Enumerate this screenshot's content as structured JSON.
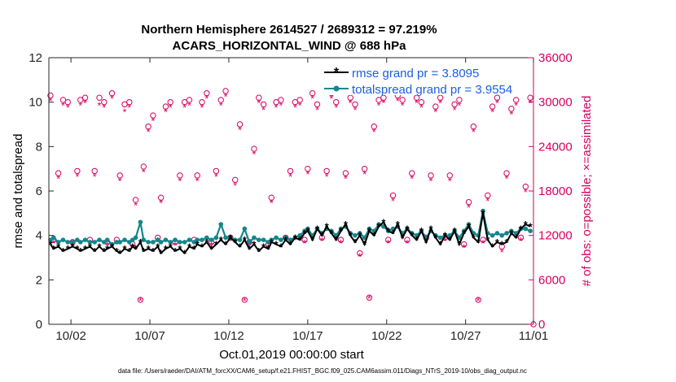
{
  "chart_data": {
    "type": "line",
    "title": [
      "Northern Hemisphere 2614527 / 2689312 = 97.219%",
      "ACARS_HORIZONTAL_WIND @ 688 hPa"
    ],
    "xlabel": "Oct.01,2019 00:00:00 start",
    "ylabel": "rmse and totalspread",
    "y2label": "# of obs: o=possible; ×=assimilated",
    "footnote": "data file: /Users/raeder/DAI/ATM_forcXX/CAM6_setup/f.e21.FHIST_BGC.f09_025.CAM6assim.011/Diags_NTrS_2019-10/obs_diag_output.nc",
    "xlim": [
      0.5,
      31.2
    ],
    "ylim": [
      0,
      12
    ],
    "y2lim": [
      0,
      36000
    ],
    "xticks": [
      1.9,
      6.9,
      11.9,
      16.9,
      21.9,
      26.9,
      31.9
    ],
    "xtick_labels": [
      "10/02",
      "10/07",
      "10/12",
      "10/17",
      "10/22",
      "10/27",
      "11/01"
    ],
    "yticks": [
      0,
      2,
      4,
      6,
      8,
      10,
      12
    ],
    "ytick_labels": [
      "0",
      "2",
      "4",
      "6",
      "8",
      "10",
      "12"
    ],
    "y2ticks": [
      0,
      6000,
      12000,
      18000,
      24000,
      30000,
      36000
    ],
    "y2tick_labels": [
      "0",
      "6000",
      "12000",
      "18000",
      "24000",
      "30000",
      "36000"
    ],
    "legend": [
      "rmse grand pr = 3.8095",
      "totalspread grand pr = 3.9554"
    ],
    "colors": {
      "rmse": "#000000",
      "spread": "#14868c",
      "obs": "#d6005f",
      "title": "#000000",
      "legend_text": "#1a5fe0"
    },
    "series": [
      {
        "name": "rmse",
        "x": [
          0.6,
          0.8,
          1.1,
          1.4,
          1.7,
          2.0,
          2.3,
          2.5,
          2.8,
          3.1,
          3.4,
          3.7,
          4.0,
          4.2,
          4.5,
          4.8,
          5.0,
          5.3,
          5.6,
          5.8,
          6.0,
          6.3,
          6.5,
          6.8,
          7.1,
          7.4,
          7.6,
          7.9,
          8.2,
          8.5,
          8.8,
          9.1,
          9.4,
          9.7,
          9.9,
          10.2,
          10.5,
          10.8,
          11.1,
          11.4,
          11.7,
          12.0,
          12.3,
          12.6,
          12.9,
          13.2,
          13.5,
          13.8,
          14.1,
          14.4,
          14.6,
          14.9,
          15.2,
          15.5,
          15.8,
          16.1,
          16.4,
          16.7,
          16.9,
          17.2,
          17.5,
          17.8,
          18.1,
          18.4,
          18.7,
          19.0,
          19.3,
          19.6,
          19.9,
          20.2,
          20.5,
          20.8,
          21.1,
          21.4,
          21.7,
          22.0,
          22.3,
          22.6,
          22.9,
          23.2,
          23.5,
          23.8,
          24.1,
          24.4,
          24.7,
          25.0,
          25.3,
          25.6,
          25.9,
          26.2,
          26.5,
          26.8,
          27.1,
          27.4,
          27.7,
          28.0,
          28.3,
          28.6,
          28.9,
          29.2,
          29.5,
          29.8,
          30.1,
          30.4,
          30.7,
          31.0
        ],
        "values": [
          3.6,
          3.4,
          3.5,
          3.3,
          3.4,
          3.5,
          3.4,
          3.3,
          3.4,
          3.5,
          3.3,
          3.5,
          3.3,
          3.4,
          3.5,
          3.3,
          3.2,
          3.4,
          3.3,
          3.5,
          3.4,
          3.7,
          3.3,
          3.4,
          3.3,
          3.5,
          3.2,
          3.4,
          3.5,
          3.3,
          3.4,
          3.2,
          3.5,
          3.4,
          3.6,
          3.5,
          3.7,
          3.4,
          3.6,
          3.8,
          3.6,
          3.9,
          3.7,
          3.5,
          3.8,
          3.4,
          3.6,
          3.3,
          3.5,
          3.4,
          3.7,
          3.6,
          3.5,
          3.8,
          3.6,
          3.9,
          3.8,
          4.1,
          4.2,
          3.8,
          4.3,
          4.0,
          4.4,
          4.1,
          3.8,
          4.2,
          4.5,
          4.0,
          3.7,
          4.0,
          3.6,
          4.2,
          4.0,
          4.4,
          4.6,
          4.2,
          4.1,
          4.5,
          3.9,
          4.3,
          4.0,
          3.8,
          4.2,
          3.7,
          4.3,
          3.9,
          3.6,
          4.0,
          3.8,
          4.2,
          3.6,
          4.1,
          4.4,
          3.9,
          3.7,
          5.0,
          3.8,
          3.5,
          3.7,
          3.6,
          3.7,
          4.1,
          3.9,
          4.3,
          4.5,
          4.4
        ]
      },
      {
        "name": "totalspread",
        "x": [
          0.6,
          0.8,
          1.1,
          1.4,
          1.7,
          2.0,
          2.3,
          2.5,
          2.8,
          3.1,
          3.4,
          3.7,
          4.0,
          4.2,
          4.5,
          4.8,
          5.0,
          5.3,
          5.6,
          5.8,
          6.0,
          6.3,
          6.5,
          6.8,
          7.1,
          7.4,
          7.6,
          7.9,
          8.2,
          8.5,
          8.8,
          9.1,
          9.4,
          9.7,
          9.9,
          10.2,
          10.5,
          10.8,
          11.1,
          11.4,
          11.7,
          12.0,
          12.3,
          12.6,
          12.9,
          13.2,
          13.5,
          13.8,
          14.1,
          14.4,
          14.6,
          14.9,
          15.2,
          15.5,
          15.8,
          16.1,
          16.4,
          16.7,
          16.9,
          17.2,
          17.5,
          17.8,
          18.1,
          18.4,
          18.7,
          19.0,
          19.3,
          19.6,
          19.9,
          20.2,
          20.5,
          20.8,
          21.1,
          21.4,
          21.7,
          22.0,
          22.3,
          22.6,
          22.9,
          23.2,
          23.5,
          23.8,
          24.1,
          24.4,
          24.7,
          25.0,
          25.3,
          25.6,
          25.9,
          26.2,
          26.5,
          26.8,
          27.1,
          27.4,
          27.7,
          28.0,
          28.3,
          28.6,
          28.9,
          29.2,
          29.5,
          29.8,
          30.1,
          30.4,
          30.7,
          31.0
        ],
        "values": [
          3.8,
          3.9,
          3.7,
          3.8,
          3.7,
          3.7,
          3.8,
          3.7,
          3.8,
          3.7,
          3.7,
          3.8,
          3.7,
          3.8,
          3.6,
          3.7,
          3.7,
          3.8,
          3.7,
          3.8,
          3.9,
          4.6,
          3.8,
          3.7,
          3.7,
          3.8,
          3.7,
          3.8,
          3.7,
          3.8,
          3.7,
          3.7,
          3.8,
          3.7,
          3.8,
          3.8,
          3.9,
          3.8,
          3.9,
          4.5,
          3.9,
          3.9,
          3.8,
          3.8,
          4.3,
          3.7,
          3.9,
          3.8,
          3.8,
          3.7,
          3.8,
          3.9,
          3.8,
          3.9,
          3.8,
          3.9,
          4.0,
          4.2,
          4.3,
          4.0,
          4.3,
          4.1,
          4.3,
          4.2,
          4.0,
          4.3,
          4.4,
          4.1,
          4.0,
          4.1,
          3.9,
          4.3,
          4.2,
          4.5,
          4.4,
          4.2,
          4.3,
          4.4,
          4.1,
          4.3,
          4.1,
          4.0,
          4.2,
          3.9,
          4.2,
          4.0,
          3.9,
          4.0,
          4.0,
          4.2,
          3.9,
          4.2,
          4.5,
          4.1,
          4.0,
          5.1,
          4.1,
          4.0,
          4.1,
          4.0,
          4.1,
          4.2,
          4.1,
          4.3,
          4.3,
          4.2
        ]
      },
      {
        "name": "obs_possible",
        "x": [
          0.6,
          0.8,
          1.1,
          1.4,
          1.7,
          2.0,
          2.3,
          2.5,
          2.8,
          3.1,
          3.4,
          3.7,
          4.0,
          4.2,
          4.5,
          4.8,
          5.0,
          5.3,
          5.6,
          5.8,
          6.0,
          6.3,
          6.5,
          6.8,
          7.1,
          7.4,
          7.6,
          7.9,
          8.2,
          8.5,
          8.8,
          9.1,
          9.4,
          9.7,
          9.9,
          10.2,
          10.5,
          10.8,
          11.1,
          11.4,
          11.7,
          12.0,
          12.3,
          12.6,
          12.9,
          13.2,
          13.5,
          13.8,
          14.1,
          14.4,
          14.6,
          14.9,
          15.2,
          15.5,
          15.8,
          16.1,
          16.4,
          16.7,
          16.9,
          17.2,
          17.5,
          17.8,
          18.1,
          18.4,
          18.7,
          19.0,
          19.3,
          19.6,
          19.9,
          20.2,
          20.5,
          20.8,
          21.1,
          21.4,
          21.7,
          22.0,
          22.3,
          22.6,
          22.9,
          23.2,
          23.5,
          23.8,
          24.1,
          24.4,
          24.7,
          25.0,
          25.3,
          25.6,
          25.9,
          26.2,
          26.5,
          26.8,
          27.1,
          27.4,
          27.7,
          28.0,
          28.3,
          28.6,
          28.9,
          29.2,
          29.5,
          29.8,
          30.1,
          30.4,
          30.7,
          31.0
        ],
        "values": [
          30900,
          11400,
          20400,
          30300,
          30000,
          11100,
          20700,
          30300,
          30600,
          11400,
          20700,
          30600,
          30000,
          11100,
          31200,
          11400,
          20100,
          29700,
          30000,
          10800,
          16800,
          3300,
          21300,
          26700,
          28200,
          11700,
          17100,
          29400,
          30000,
          11100,
          20100,
          30000,
          30300,
          11400,
          20100,
          30000,
          31200,
          11100,
          20700,
          30300,
          31500,
          11700,
          19500,
          27000,
          3300,
          11100,
          23700,
          30600,
          29700,
          10800,
          17100,
          30000,
          30300,
          11700,
          20700,
          30000,
          30300,
          11400,
          21000,
          31200,
          29700,
          11700,
          20700,
          31200,
          30000,
          11400,
          20400,
          30600,
          29700,
          9600,
          21000,
          3600,
          26700,
          30300,
          30600,
          11400,
          17400,
          30900,
          30300,
          11400,
          20400,
          30600,
          30000,
          11700,
          20100,
          29400,
          30600,
          11700,
          20100,
          29700,
          30300,
          10800,
          16500,
          26700,
          3300,
          11400,
          17400,
          29400,
          30600,
          10500,
          20400,
          29100,
          30300,
          11700,
          18600,
          30600
        ]
      },
      {
        "name": "obs_assimilated",
        "x": [
          0.6,
          0.8,
          1.1,
          1.4,
          1.7,
          2.0,
          2.3,
          2.5,
          2.8,
          3.1,
          3.4,
          3.7,
          4.0,
          4.2,
          4.5,
          4.8,
          5.0,
          5.3,
          5.6,
          5.8,
          6.0,
          6.3,
          6.5,
          6.8,
          7.1,
          7.4,
          7.6,
          7.9,
          8.2,
          8.5,
          8.8,
          9.1,
          9.4,
          9.7,
          9.9,
          10.2,
          10.5,
          10.8,
          11.1,
          11.4,
          11.7,
          12.0,
          12.3,
          12.6,
          12.9,
          13.2,
          13.5,
          13.8,
          14.1,
          14.4,
          14.6,
          14.9,
          15.2,
          15.5,
          15.8,
          16.1,
          16.4,
          16.7,
          16.9,
          17.2,
          17.5,
          17.8,
          18.1,
          18.4,
          18.7,
          19.0,
          19.3,
          19.6,
          19.9,
          20.2,
          20.5,
          20.8,
          21.1,
          21.4,
          21.7,
          22.0,
          22.3,
          22.6,
          22.9,
          23.2,
          23.5,
          23.8,
          24.1,
          24.4,
          24.7,
          25.0,
          25.3,
          25.6,
          25.9,
          26.2,
          26.5,
          26.8,
          27.1,
          27.4,
          27.7,
          28.0,
          28.3,
          28.6,
          28.9,
          29.2,
          29.5,
          29.8,
          30.1,
          30.4,
          30.7,
          31.0
        ],
        "values": [
          30300,
          11100,
          19800,
          29700,
          29400,
          10800,
          20100,
          29700,
          30000,
          11100,
          20100,
          29700,
          29400,
          10800,
          30600,
          11100,
          19500,
          28800,
          29400,
          10500,
          16200,
          3300,
          20700,
          26100,
          27600,
          11400,
          16500,
          28800,
          29400,
          10800,
          19500,
          29400,
          29700,
          11100,
          19500,
          29400,
          30600,
          10800,
          20100,
          29700,
          30900,
          11400,
          18900,
          26400,
          3300,
          10800,
          23100,
          30000,
          29100,
          10500,
          16500,
          29400,
          29700,
          11400,
          20100,
          29400,
          29700,
          11100,
          20400,
          30600,
          29100,
          11400,
          20100,
          30600,
          29400,
          11100,
          19800,
          30000,
          29100,
          9300,
          20400,
          3600,
          26100,
          29700,
          30000,
          11100,
          16800,
          30300,
          29700,
          11100,
          19800,
          30000,
          29400,
          11400,
          19500,
          28800,
          30000,
          11400,
          19500,
          29100,
          29700,
          10500,
          15900,
          26100,
          3300,
          11100,
          16800,
          28800,
          30000,
          9900,
          19800,
          28500,
          29700,
          11400,
          18000,
          30000
        ]
      }
    ]
  }
}
